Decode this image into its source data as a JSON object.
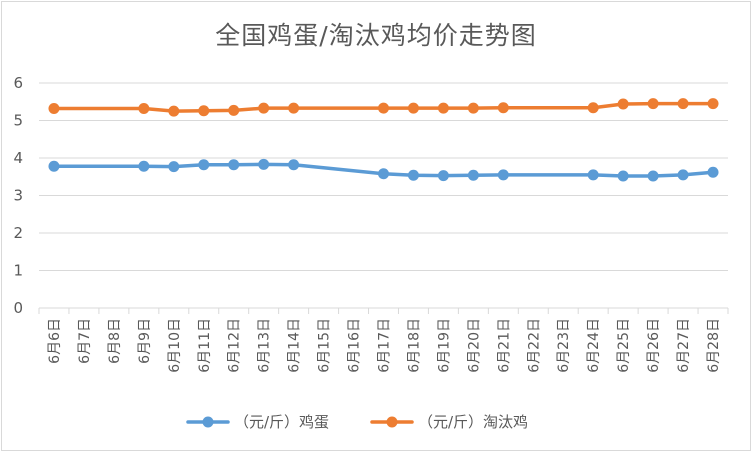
{
  "chart_data": {
    "type": "line",
    "title": "全国鸡蛋/淘汰鸡均价走势图",
    "xlabel": "",
    "ylabel": "",
    "ylim": [
      0,
      6
    ],
    "yticks": [
      "0",
      "1",
      "2",
      "3",
      "4",
      "5",
      "6"
    ],
    "grid": true,
    "legend_position": "bottom",
    "categories": [
      "6月6日",
      "6月7日",
      "6月8日",
      "6月9日",
      "6月10日",
      "6月11日",
      "6月12日",
      "6月13日",
      "6月14日",
      "6月15日",
      "6月16日",
      "6月17日",
      "6月18日",
      "6月19日",
      "6月20日",
      "6月21日",
      "6月22日",
      "6月23日",
      "6月24日",
      "6月25日",
      "6月26日",
      "6月27日",
      "6月28日"
    ],
    "series": [
      {
        "name": "（元/斤）鸡蛋",
        "color": "#5b9bd5",
        "values": [
          3.78,
          null,
          null,
          3.78,
          3.77,
          3.82,
          3.82,
          3.83,
          3.82,
          null,
          null,
          3.58,
          3.54,
          3.53,
          3.54,
          3.55,
          null,
          null,
          3.55,
          3.52,
          3.52,
          3.55,
          3.62
        ]
      },
      {
        "name": "（元/斤）淘汰鸡",
        "color": "#ed7d31",
        "values": [
          5.32,
          null,
          null,
          5.32,
          5.25,
          5.26,
          5.27,
          5.33,
          5.33,
          null,
          null,
          5.33,
          5.33,
          5.33,
          5.33,
          5.34,
          null,
          null,
          5.34,
          5.44,
          5.45,
          5.45,
          5.45
        ]
      }
    ]
  }
}
